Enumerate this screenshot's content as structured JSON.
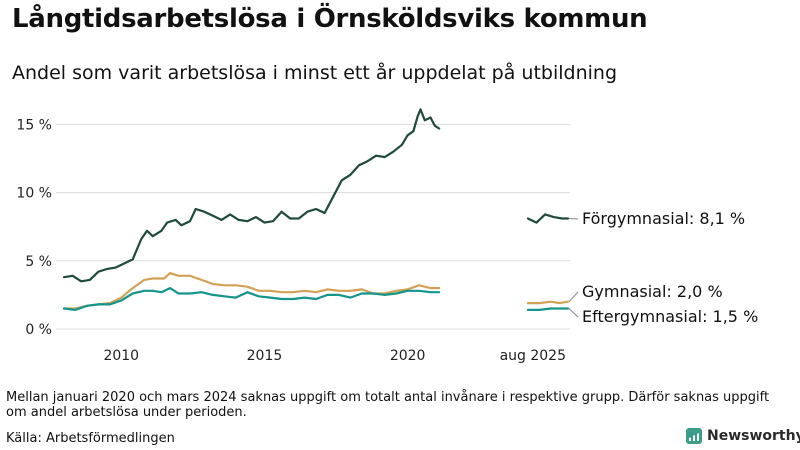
{
  "header": {
    "title": "Långtidsarbetslösa i Örnsköldsviks kommun",
    "subtitle": "Andel som varit arbetslösa i minst ett år uppdelat på utbildning"
  },
  "footer": {
    "note": "Mellan januari 2020 och mars 2024 saknas uppgift om totalt antal invånare i respektive grupp. Därför saknas uppgift om andel arbetslösa under perioden.",
    "source": "Källa: Arbetsförmedlingen",
    "brand": "Newsworthy"
  },
  "chart_data": {
    "type": "line",
    "title": "Långtidsarbetslösa i Örnsköldsviks kommun",
    "subtitle": "Andel som varit arbetslösa i minst ett år uppdelat på utbildning",
    "x_axis": {
      "ticks": [
        2010,
        2015,
        2020
      ],
      "tick_labels": [
        "2010",
        "2015",
        "2020"
      ],
      "extra_label": "aug 2025"
    },
    "y_axis": {
      "ticks": [
        0,
        5,
        10,
        15
      ],
      "tick_labels": [
        "0 %",
        "5 %",
        "10 %",
        "15 %"
      ],
      "ylim": [
        0,
        16.2
      ]
    },
    "grid": "horizontal",
    "colors": {
      "forgymnasial": "#1f4a3d",
      "gymnasial": "#d3a155",
      "eftergymnasial": "#13958b"
    },
    "series": [
      {
        "key": "forgymnasial",
        "name": "Förgymnasial",
        "end_label": "Förgymnasial: 8,1 %",
        "main": [
          [
            2008.0,
            3.8
          ],
          [
            2008.3,
            3.9
          ],
          [
            2008.6,
            3.5
          ],
          [
            2008.9,
            3.6
          ],
          [
            2009.2,
            4.2
          ],
          [
            2009.5,
            4.4
          ],
          [
            2009.8,
            4.5
          ],
          [
            2010.1,
            4.8
          ],
          [
            2010.4,
            5.1
          ],
          [
            2010.7,
            6.6
          ],
          [
            2010.9,
            7.2
          ],
          [
            2011.1,
            6.8
          ],
          [
            2011.4,
            7.2
          ],
          [
            2011.6,
            7.8
          ],
          [
            2011.9,
            8.0
          ],
          [
            2012.1,
            7.6
          ],
          [
            2012.4,
            7.9
          ],
          [
            2012.6,
            8.8
          ],
          [
            2012.9,
            8.6
          ],
          [
            2013.2,
            8.3
          ],
          [
            2013.5,
            8.0
          ],
          [
            2013.8,
            8.4
          ],
          [
            2014.1,
            8.0
          ],
          [
            2014.4,
            7.9
          ],
          [
            2014.7,
            8.2
          ],
          [
            2015.0,
            7.8
          ],
          [
            2015.3,
            7.9
          ],
          [
            2015.6,
            8.6
          ],
          [
            2015.9,
            8.1
          ],
          [
            2016.2,
            8.1
          ],
          [
            2016.5,
            8.6
          ],
          [
            2016.8,
            8.8
          ],
          [
            2017.1,
            8.5
          ],
          [
            2017.4,
            9.7
          ],
          [
            2017.7,
            10.9
          ],
          [
            2018.0,
            11.3
          ],
          [
            2018.3,
            12.0
          ],
          [
            2018.6,
            12.3
          ],
          [
            2018.9,
            12.7
          ],
          [
            2019.2,
            12.6
          ],
          [
            2019.5,
            13.0
          ],
          [
            2019.8,
            13.5
          ],
          [
            2020.0,
            14.2
          ],
          [
            2020.2,
            14.5
          ],
          [
            2020.35,
            15.6
          ],
          [
            2020.45,
            16.1
          ],
          [
            2020.6,
            15.3
          ],
          [
            2020.8,
            15.5
          ],
          [
            2020.95,
            14.9
          ],
          [
            2021.1,
            14.7
          ]
        ],
        "recent": [
          [
            2024.2,
            8.1
          ],
          [
            2024.5,
            7.8
          ],
          [
            2024.8,
            8.4
          ],
          [
            2025.1,
            8.2
          ],
          [
            2025.4,
            8.1
          ],
          [
            2025.6,
            8.1
          ]
        ]
      },
      {
        "key": "gymnasial",
        "name": "Gymnasial",
        "end_label": "Gymnasial: 2,0 %",
        "main": [
          [
            2008.0,
            1.5
          ],
          [
            2008.4,
            1.5
          ],
          [
            2008.8,
            1.7
          ],
          [
            2009.2,
            1.8
          ],
          [
            2009.6,
            1.9
          ],
          [
            2010.0,
            2.3
          ],
          [
            2010.4,
            3.0
          ],
          [
            2010.8,
            3.6
          ],
          [
            2011.1,
            3.7
          ],
          [
            2011.5,
            3.7
          ],
          [
            2011.7,
            4.1
          ],
          [
            2012.0,
            3.9
          ],
          [
            2012.4,
            3.9
          ],
          [
            2012.8,
            3.6
          ],
          [
            2013.2,
            3.3
          ],
          [
            2013.6,
            3.2
          ],
          [
            2014.0,
            3.2
          ],
          [
            2014.4,
            3.1
          ],
          [
            2014.8,
            2.8
          ],
          [
            2015.2,
            2.8
          ],
          [
            2015.6,
            2.7
          ],
          [
            2016.0,
            2.7
          ],
          [
            2016.4,
            2.8
          ],
          [
            2016.8,
            2.7
          ],
          [
            2017.2,
            2.9
          ],
          [
            2017.6,
            2.8
          ],
          [
            2018.0,
            2.8
          ],
          [
            2018.4,
            2.9
          ],
          [
            2018.8,
            2.6
          ],
          [
            2019.2,
            2.6
          ],
          [
            2019.6,
            2.8
          ],
          [
            2020.0,
            2.9
          ],
          [
            2020.4,
            3.2
          ],
          [
            2020.8,
            3.0
          ],
          [
            2021.1,
            3.0
          ]
        ],
        "recent": [
          [
            2024.2,
            1.9
          ],
          [
            2024.6,
            1.9
          ],
          [
            2025.0,
            2.0
          ],
          [
            2025.3,
            1.9
          ],
          [
            2025.6,
            2.0
          ]
        ]
      },
      {
        "key": "eftergymnasial",
        "name": "Eftergymnasial",
        "end_label": "Eftergymnasial: 1,5 %",
        "main": [
          [
            2008.0,
            1.5
          ],
          [
            2008.4,
            1.4
          ],
          [
            2008.8,
            1.7
          ],
          [
            2009.2,
            1.8
          ],
          [
            2009.6,
            1.8
          ],
          [
            2010.0,
            2.1
          ],
          [
            2010.4,
            2.6
          ],
          [
            2010.8,
            2.8
          ],
          [
            2011.1,
            2.8
          ],
          [
            2011.4,
            2.7
          ],
          [
            2011.7,
            3.0
          ],
          [
            2012.0,
            2.6
          ],
          [
            2012.4,
            2.6
          ],
          [
            2012.8,
            2.7
          ],
          [
            2013.2,
            2.5
          ],
          [
            2013.6,
            2.4
          ],
          [
            2014.0,
            2.3
          ],
          [
            2014.4,
            2.7
          ],
          [
            2014.8,
            2.4
          ],
          [
            2015.2,
            2.3
          ],
          [
            2015.6,
            2.2
          ],
          [
            2016.0,
            2.2
          ],
          [
            2016.4,
            2.3
          ],
          [
            2016.8,
            2.2
          ],
          [
            2017.2,
            2.5
          ],
          [
            2017.6,
            2.5
          ],
          [
            2018.0,
            2.3
          ],
          [
            2018.4,
            2.6
          ],
          [
            2018.8,
            2.6
          ],
          [
            2019.2,
            2.5
          ],
          [
            2019.6,
            2.6
          ],
          [
            2020.0,
            2.8
          ],
          [
            2020.4,
            2.8
          ],
          [
            2020.8,
            2.7
          ],
          [
            2021.1,
            2.7
          ]
        ],
        "recent": [
          [
            2024.2,
            1.4
          ],
          [
            2024.6,
            1.4
          ],
          [
            2025.0,
            1.5
          ],
          [
            2025.3,
            1.5
          ],
          [
            2025.6,
            1.5
          ]
        ]
      }
    ]
  }
}
